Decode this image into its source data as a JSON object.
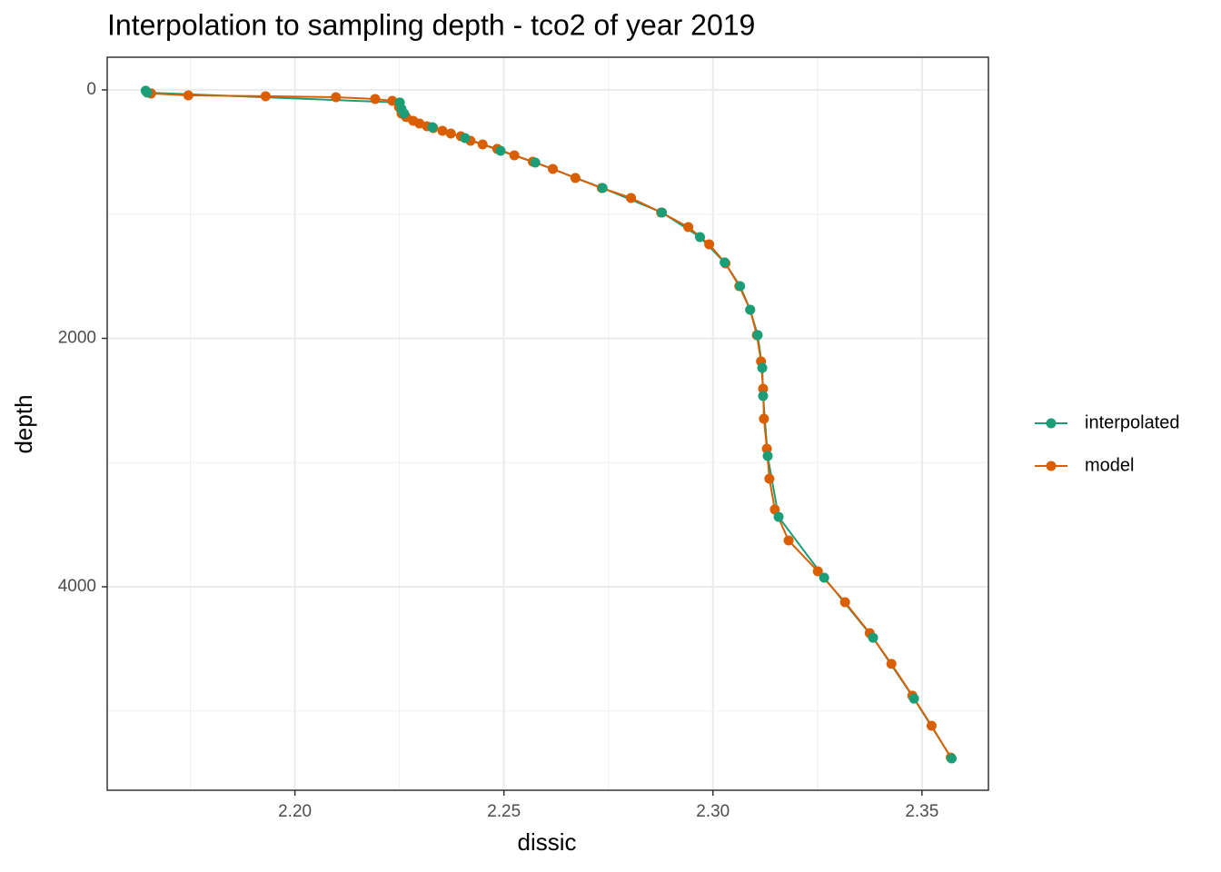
{
  "chart_data": {
    "type": "line",
    "title": "Interpolation to sampling depth - tco2 of year 2019",
    "x_label": "dissic",
    "y_label": "depth",
    "xlim": [
      2.1551,
      2.3659
    ],
    "ylim": [
      -263,
      5638
    ],
    "y_reversed": true,
    "xticks": [
      {
        "value": 2.2,
        "label": "2.20"
      },
      2.25,
      {
        "value": 2.3,
        "label": "2.30"
      },
      2.35
    ],
    "yticks": [
      0,
      2000,
      4000
    ],
    "x_minor_ticks": [
      2.175,
      2.225,
      2.275,
      2.325
    ],
    "y_minor_ticks": [
      1000,
      3000,
      5000
    ],
    "grid": true,
    "legend": "right",
    "series": [
      {
        "name": "interpolated",
        "color": "#1B9E77",
        "x": [
          2.1643,
          2.1647,
          2.2251,
          2.2255,
          2.2261,
          2.2329,
          2.2407,
          2.2492,
          2.2575,
          2.2736,
          2.2878,
          2.2969,
          2.3028,
          2.3065,
          2.3089,
          2.3107,
          2.3118,
          2.312,
          2.3131,
          2.3157,
          2.3266,
          2.3383,
          2.3481,
          2.3571
        ],
        "values": [
          7,
          22,
          102,
          154,
          190,
          300,
          388,
          490,
          585,
          790,
          987,
          1185,
          1389,
          1580,
          1770,
          1974,
          2238,
          2464,
          2947,
          3437,
          3927,
          4410,
          4900,
          5382
        ]
      },
      {
        "name": "model",
        "color": "#D95F02",
        "x": [
          2.1645,
          2.1656,
          2.1745,
          2.193,
          2.2098,
          2.2192,
          2.2233,
          2.2249,
          2.2255,
          2.2266,
          2.2283,
          2.2298,
          2.2316,
          2.2331,
          2.2353,
          2.2373,
          2.2397,
          2.242,
          2.2449,
          2.2484,
          2.2525,
          2.2569,
          2.2617,
          2.2671,
          2.2734,
          2.2804,
          2.2876,
          2.2941,
          2.2991,
          2.303,
          2.3063,
          2.3089,
          2.3105,
          2.3115,
          2.312,
          2.3122,
          2.3129,
          2.3135,
          2.3148,
          2.3181,
          2.3251,
          2.3316,
          2.3375,
          2.3427,
          2.3477,
          2.3523,
          2.3569
        ],
        "values": [
          15,
          29,
          44,
          51,
          59,
          73,
          88,
          139,
          190,
          219,
          249,
          271,
          293,
          307,
          329,
          351,
          373,
          410,
          439,
          475,
          527,
          578,
          636,
          709,
          790,
          870,
          987,
          1104,
          1243,
          1397,
          1580,
          1770,
          1974,
          2186,
          2406,
          2647,
          2889,
          3130,
          3378,
          3627,
          3876,
          4124,
          4373,
          4621,
          4877,
          5119,
          5375
        ]
      }
    ]
  }
}
